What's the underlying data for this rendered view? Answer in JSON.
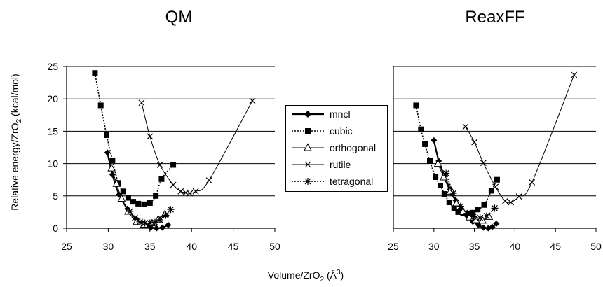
{
  "figure": {
    "xlabel_main": "Volume/ZrO",
    "xlabel_sub": "2",
    "xlabel_unit_open": " (Å",
    "xlabel_sup": "3",
    "xlabel_unit_close": ")",
    "ylabel_main": "Relative energy/ZrO",
    "ylabel_sub": "2",
    "ylabel_unit": " (kcal/mol)"
  },
  "legend": {
    "items": [
      {
        "label": "mncl",
        "marker": "diamond",
        "line": "solid-thick"
      },
      {
        "label": "cubic",
        "marker": "square",
        "line": "dotted"
      },
      {
        "label": "orthogonal",
        "marker": "triangle",
        "line": "solid"
      },
      {
        "label": "rutile",
        "marker": "x",
        "line": "solid"
      },
      {
        "label": "tetragonal",
        "marker": "asterisk",
        "line": "dotted"
      }
    ]
  },
  "chart_data": [
    {
      "type": "scatter",
      "title": "QM",
      "xlim": [
        25,
        50
      ],
      "ylim": [
        0,
        25
      ],
      "x_ticks": [
        "25",
        "30",
        "35",
        "40",
        "45",
        "50"
      ],
      "y_ticks": [
        "0",
        "5",
        "10",
        "15",
        "20",
        "25"
      ],
      "grid": "horizontal",
      "series": [
        {
          "name": "mncl",
          "x": [
            29.9,
            30.5,
            31.3,
            32.3,
            33.4,
            34.4,
            35.1,
            35.8,
            36.5,
            37.2
          ],
          "y": [
            11.7,
            8.3,
            5.2,
            3.0,
            1.4,
            0.5,
            0.1,
            0.0,
            0.1,
            0.5
          ]
        },
        {
          "name": "cubic",
          "x": [
            28.4,
            29.1,
            29.8,
            30.5,
            31.2,
            31.8,
            32.4,
            33.0,
            33.6,
            34.3,
            35.0,
            35.7,
            36.4,
            37.8
          ],
          "y": [
            24.0,
            19.0,
            14.4,
            10.5,
            7.0,
            5.7,
            4.7,
            4.1,
            3.8,
            3.7,
            3.9,
            5.0,
            7.6,
            9.8
          ]
        },
        {
          "name": "orthogonal",
          "x": [
            30.4,
            31.0,
            31.6,
            32.4,
            33.4,
            34.3,
            35.2,
            36.0,
            36.8
          ],
          "y": [
            9.3,
            6.9,
            4.6,
            2.6,
            1.0,
            0.6,
            0.8,
            1.4,
            2.2
          ]
        },
        {
          "name": "rutile",
          "x": [
            34.0,
            35.0,
            36.2,
            37.8,
            38.7,
            39.3,
            39.8,
            40.5,
            42.1,
            47.3
          ],
          "y": [
            19.4,
            14.2,
            9.8,
            6.7,
            5.7,
            5.5,
            5.4,
            5.7,
            7.4,
            19.7
          ]
        },
        {
          "name": "tetragonal",
          "x": [
            32.6,
            33.2,
            33.8,
            34.4,
            35.0,
            35.6,
            36.2,
            36.9,
            37.5
          ],
          "y": [
            2.6,
            1.6,
            1.0,
            0.8,
            0.8,
            0.9,
            1.3,
            2.0,
            2.9
          ]
        }
      ]
    },
    {
      "type": "scatter",
      "title": "ReaxFF",
      "xlim": [
        25,
        50
      ],
      "ylim": [
        0,
        25
      ],
      "x_ticks": [
        "25",
        "30",
        "35",
        "40",
        "45",
        "50"
      ],
      "y_ticks": [],
      "grid": "horizontal",
      "series": [
        {
          "name": "mncl",
          "x": [
            30.0,
            30.6,
            31.3,
            32.0,
            32.7,
            33.4,
            34.1,
            34.8,
            35.5,
            36.1,
            36.7,
            37.2,
            37.7
          ],
          "y": [
            13.6,
            10.4,
            8.1,
            6.0,
            4.3,
            3.0,
            1.9,
            1.0,
            0.5,
            0.1,
            0.0,
            0.2,
            0.7
          ]
        },
        {
          "name": "cubic",
          "x": [
            27.8,
            28.4,
            28.9,
            29.5,
            30.2,
            30.8,
            31.3,
            31.9,
            32.5,
            33.0,
            33.6,
            34.2,
            34.8,
            35.4,
            36.2,
            37.1,
            37.8
          ],
          "y": [
            19.0,
            15.3,
            13.0,
            10.4,
            7.9,
            6.6,
            5.3,
            4.0,
            3.1,
            2.5,
            2.3,
            2.2,
            2.4,
            2.9,
            3.6,
            5.8,
            7.5
          ]
        },
        {
          "name": "orthogonal",
          "x": [
            30.5,
            31.2,
            32.0,
            32.8,
            33.6,
            34.4,
            35.2,
            36.0,
            36.8
          ],
          "y": [
            10.0,
            7.9,
            5.7,
            3.9,
            2.6,
            1.7,
            1.3,
            1.2,
            1.8
          ]
        },
        {
          "name": "rutile",
          "x": [
            33.9,
            35.0,
            36.1,
            37.6,
            38.8,
            39.5,
            40.5,
            42.1,
            47.3
          ],
          "y": [
            15.7,
            13.3,
            10.1,
            6.4,
            4.2,
            4.0,
            4.9,
            7.1,
            23.7
          ]
        },
        {
          "name": "tetragonal",
          "x": [
            31.5,
            32.4,
            33.3,
            34.1,
            34.9,
            35.7,
            36.5,
            37.5
          ],
          "y": [
            8.5,
            5.4,
            3.4,
            2.3,
            1.8,
            1.6,
            1.9,
            3.1
          ]
        }
      ]
    }
  ]
}
